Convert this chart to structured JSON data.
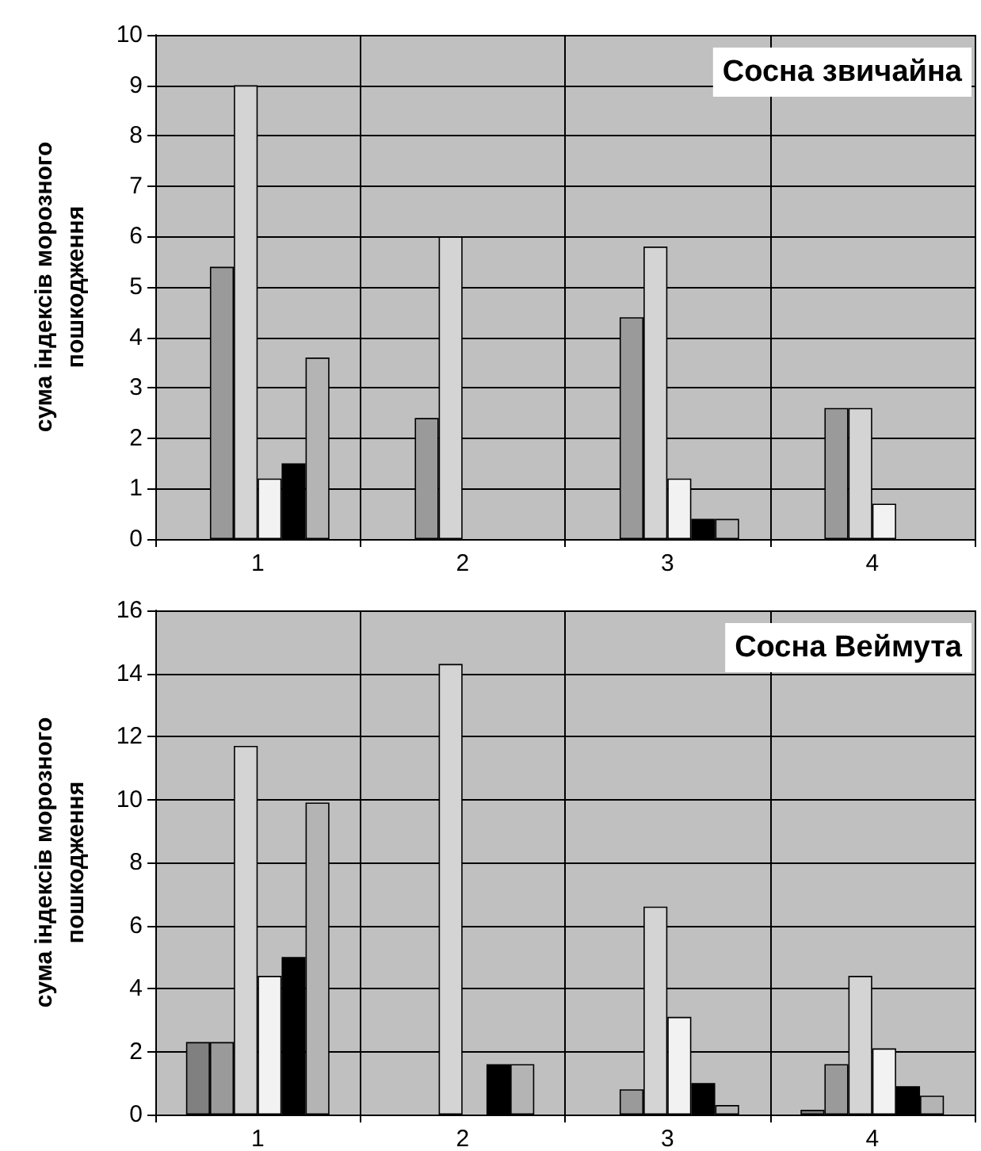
{
  "chart_data": [
    {
      "type": "bar",
      "title": "Сосна звичайна",
      "ylabel": "сума індексів морозного\nпошкодження",
      "categories": [
        "1",
        "2",
        "3",
        "4"
      ],
      "ylim": [
        0,
        10
      ],
      "yticks": [
        0,
        1,
        2,
        3,
        4,
        5,
        6,
        7,
        8,
        9,
        10
      ],
      "grid": true,
      "series": [
        {
          "color": "#808080",
          "values": [
            null,
            null,
            null,
            null
          ]
        },
        {
          "color": "#9a9a9a",
          "values": [
            5.4,
            2.4,
            4.4,
            2.6
          ]
        },
        {
          "color": "#d4d4d4",
          "values": [
            9.0,
            6.0,
            5.8,
            2.6
          ]
        },
        {
          "color": "#f2f2f2",
          "values": [
            1.2,
            null,
            1.2,
            0.7
          ]
        },
        {
          "color": "#000000",
          "values": [
            1.5,
            null,
            0.4,
            null
          ]
        },
        {
          "color": "#b4b4b4",
          "values": [
            3.6,
            null,
            0.4,
            null
          ]
        }
      ]
    },
    {
      "type": "bar",
      "title": "Сосна Веймута",
      "ylabel": "сума індексів морозного\nпошкодження",
      "categories": [
        "1",
        "2",
        "3",
        "4"
      ],
      "ylim": [
        0,
        16
      ],
      "yticks": [
        0,
        2,
        4,
        6,
        8,
        10,
        12,
        14,
        16
      ],
      "grid": true,
      "series": [
        {
          "color": "#808080",
          "values": [
            2.3,
            null,
            null,
            0.15
          ]
        },
        {
          "color": "#9a9a9a",
          "values": [
            2.3,
            null,
            0.8,
            1.6
          ]
        },
        {
          "color": "#d4d4d4",
          "values": [
            11.7,
            14.3,
            6.6,
            4.4
          ]
        },
        {
          "color": "#f2f2f2",
          "values": [
            4.4,
            null,
            3.1,
            2.1
          ]
        },
        {
          "color": "#000000",
          "values": [
            5.0,
            1.6,
            1.0,
            0.9
          ]
        },
        {
          "color": "#b4b4b4",
          "values": [
            9.9,
            1.6,
            0.3,
            0.6
          ]
        }
      ]
    }
  ]
}
